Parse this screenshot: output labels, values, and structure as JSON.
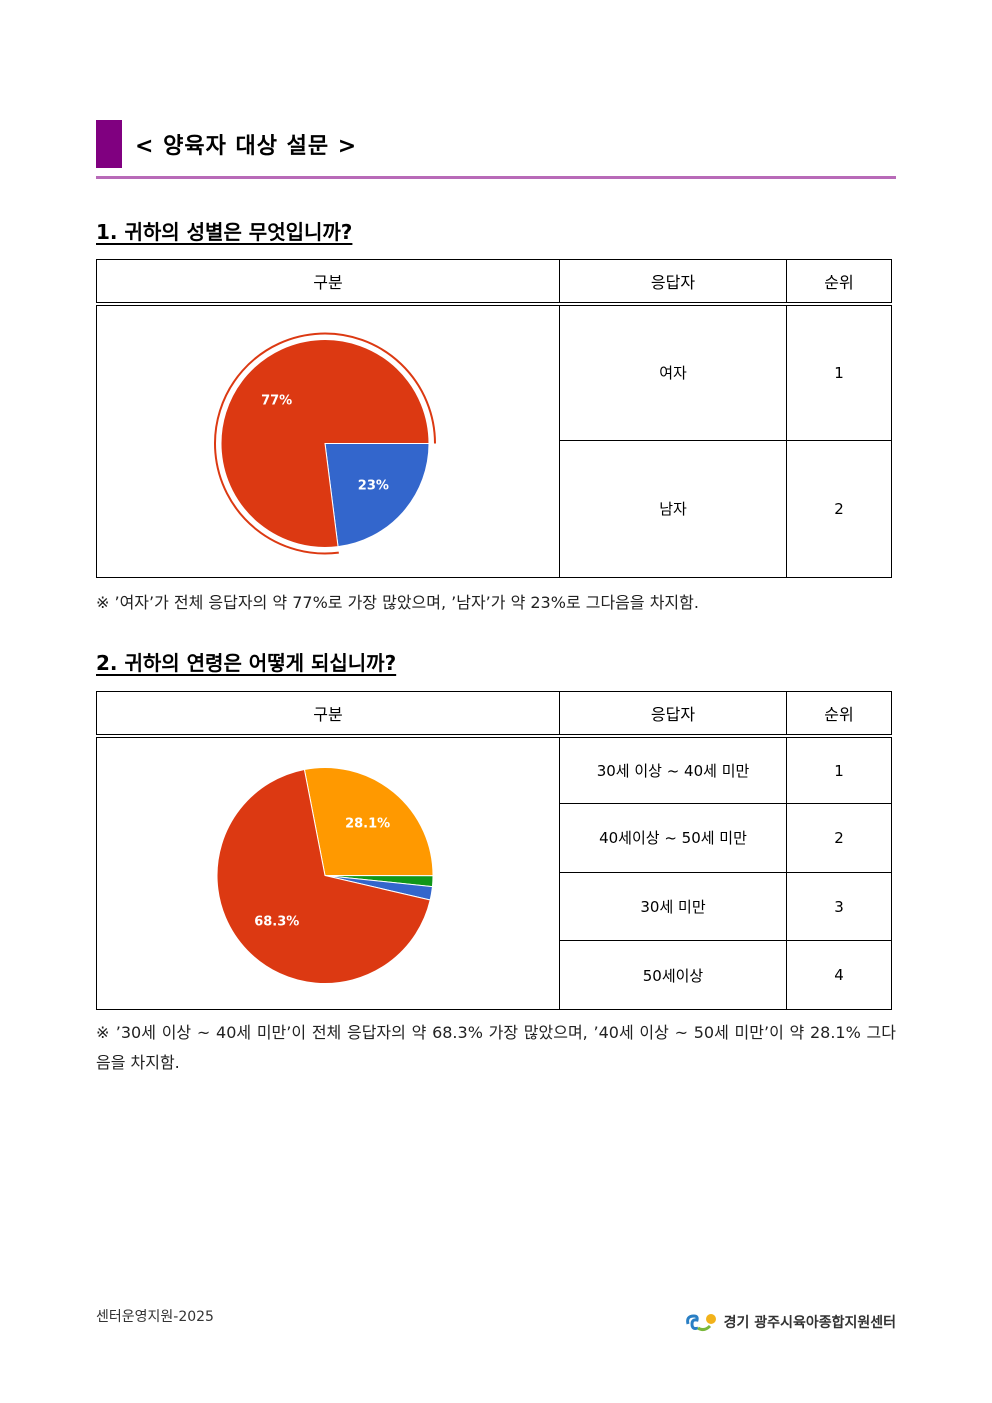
{
  "header": {
    "title": "< 양육자 대상 설문 >"
  },
  "sections": [
    {
      "heading": "1. 귀하의 성별은 무엇입니까?",
      "table": {
        "columns": [
          "구분",
          "응답자",
          "순위"
        ],
        "rows": [
          [
            "여자",
            1
          ],
          [
            "남자",
            2
          ]
        ]
      },
      "chart_data": {
        "type": "pie",
        "values": [
          23,
          77
        ],
        "value_labels": [
          "23%",
          "77%"
        ],
        "colors": [
          "#3366cc",
          "#dc3912"
        ]
      },
      "note": "※ ’여자’가 전체 응답자의 약 77%로 가장 많았으며, ’남자’가 약 23%로 그다음을 차지함."
    },
    {
      "heading": "2. 귀하의 연령은 어떻게 되십니까?",
      "table": {
        "columns": [
          "구분",
          "응답자",
          "순위"
        ],
        "rows": [
          [
            "30세 이상 ~ 40세 미만",
            1
          ],
          [
            "40세이상 ~ 50세 미만",
            2
          ],
          [
            "30세 미만",
            3
          ],
          [
            "50세이상",
            4
          ]
        ]
      },
      "chart_data": {
        "type": "pie",
        "values": [
          28.1,
          1.6,
          2.0,
          68.3
        ],
        "value_labels": [
          "28.1%",
          null,
          null,
          "68.3%"
        ],
        "colors": [
          "#ff9900",
          "#109618",
          "#3366cc",
          "#dc3912"
        ]
      },
      "note": "※ ’30세 이상 ~ 40세 미만’이 전체 응답자의 약 68.3% 가장 많았으며, ’40세 이상 ~ 50세 미만’이 약 28.1% 그다음을 차지함."
    }
  ],
  "footer": {
    "left": "센터운영지원-2025",
    "right": "경기 광주시육아종합지원센터"
  }
}
